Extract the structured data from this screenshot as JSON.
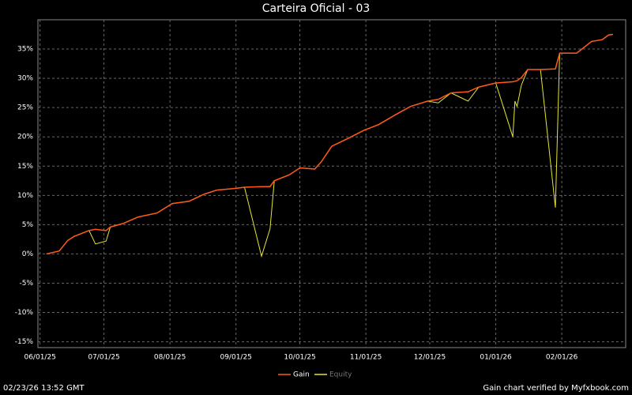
{
  "chart_data": {
    "type": "line",
    "title": "Carteira Oficial - 03",
    "footer_left": "02/23/26 13:52 GMT",
    "footer_right": "Gain chart verified by Myfxbook.com",
    "x": [
      "2025-06-04",
      "2025-06-10",
      "2025-06-14",
      "2025-06-17",
      "2025-06-24",
      "2025-06-27",
      "2025-07-02",
      "2025-07-04",
      "2025-07-10",
      "2025-07-17",
      "2025-07-26",
      "2025-08-02",
      "2025-08-10",
      "2025-08-17",
      "2025-08-23",
      "2025-09-01",
      "2025-09-05",
      "2025-09-13",
      "2025-09-17",
      "2025-09-19",
      "2025-09-26",
      "2025-10-01",
      "2025-10-08",
      "2025-10-11",
      "2025-10-16",
      "2025-10-24",
      "2025-10-31",
      "2025-11-07",
      "2025-11-15",
      "2025-11-22",
      "2025-11-30",
      "2025-12-05",
      "2025-12-11",
      "2025-12-19",
      "2025-12-24",
      "2026-01-01",
      "2026-01-09",
      "2026-01-10",
      "2026-01-11",
      "2026-01-13",
      "2026-01-16",
      "2026-01-22",
      "2026-01-29",
      "2026-01-31",
      "2026-02-08",
      "2026-02-15",
      "2026-02-20",
      "2026-02-23",
      "2026-02-25"
    ],
    "series": [
      {
        "name": "Gain",
        "color": "#ff5a1a",
        "values": [
          0,
          0.5,
          2.3,
          3.0,
          4.0,
          4.2,
          4.0,
          4.6,
          5.2,
          6.3,
          7.0,
          8.6,
          9.0,
          10.2,
          10.9,
          11.2,
          11.4,
          11.5,
          11.5,
          12.5,
          13.5,
          14.7,
          14.5,
          15.7,
          18.4,
          19.8,
          21.1,
          22.1,
          23.8,
          25.2,
          26.1,
          26.4,
          27.5,
          27.7,
          28.5,
          29.2,
          29.4,
          29.5,
          29.6,
          30.1,
          31.5,
          31.5,
          31.6,
          34.3,
          34.3,
          36.3,
          36.6,
          37.4,
          37.5
        ]
      },
      {
        "name": "Equity",
        "color": "#e6e632",
        "values": [
          0,
          0.5,
          2.3,
          3.0,
          4.0,
          1.7,
          2.2,
          4.6,
          5.2,
          6.3,
          7.0,
          8.6,
          9.0,
          10.2,
          10.9,
          11.2,
          11.4,
          -0.4,
          4.3,
          12.5,
          13.5,
          14.7,
          14.5,
          15.7,
          18.4,
          19.8,
          21.1,
          22.1,
          23.8,
          25.2,
          26.1,
          25.8,
          27.5,
          26.1,
          28.5,
          29.2,
          20.0,
          26.1,
          25.2,
          28.8,
          31.5,
          31.5,
          7.9,
          34.3,
          34.3,
          36.3,
          36.6,
          37.4,
          37.5
        ]
      }
    ],
    "xlim": [
      "2025-05-31",
      "2026-03-03"
    ],
    "xticks": [
      {
        "value": "2025-06-01",
        "label": "06/01/25"
      },
      {
        "value": "2025-07-01",
        "label": "07/01/25"
      },
      {
        "value": "2025-08-01",
        "label": "08/01/25"
      },
      {
        "value": "2025-09-01",
        "label": "09/01/25"
      },
      {
        "value": "2025-10-01",
        "label": "10/01/25"
      },
      {
        "value": "2025-11-01",
        "label": "11/01/25"
      },
      {
        "value": "2025-12-01",
        "label": "12/01/25"
      },
      {
        "value": "2026-01-01",
        "label": "01/01/26"
      },
      {
        "value": "2026-02-01",
        "label": "02/01/26"
      }
    ],
    "ylim": [
      -16,
      40
    ],
    "yticks": [
      {
        "value": -15,
        "label": "-15%"
      },
      {
        "value": -10,
        "label": "-10%"
      },
      {
        "value": -5,
        "label": "-5%"
      },
      {
        "value": 0,
        "label": "0%"
      },
      {
        "value": 5,
        "label": "5%"
      },
      {
        "value": 10,
        "label": "10%"
      },
      {
        "value": 15,
        "label": "15%"
      },
      {
        "value": 20,
        "label": "20%"
      },
      {
        "value": 25,
        "label": "25%"
      },
      {
        "value": 30,
        "label": "30%"
      },
      {
        "value": 35,
        "label": "35%"
      }
    ],
    "grid": true
  }
}
